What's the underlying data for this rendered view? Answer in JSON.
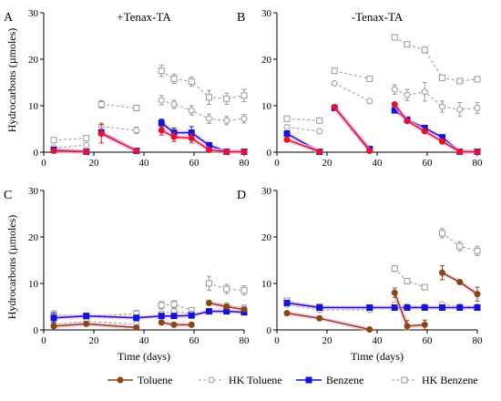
{
  "figure": {
    "ylabel": "Hydrocarbons (µmoles)",
    "xlabel": "Time (days)"
  },
  "legend": [
    {
      "key": "toluene",
      "label": "Toluene"
    },
    {
      "key": "hk_toluene",
      "label": "HK Toluene"
    },
    {
      "key": "benzene",
      "label": "Benzene"
    },
    {
      "key": "hk_benzene",
      "label": "HK Benzene"
    }
  ],
  "styles": {
    "toluene": {
      "color": "#8B4513",
      "dashed": false,
      "marker": "circle",
      "filled": true
    },
    "toluene_red": {
      "color": "#e8102a",
      "dashed": false,
      "marker": "circle",
      "filled": true
    },
    "hk_toluene": {
      "color": "#999999",
      "dashed": true,
      "marker": "circle",
      "filled": false
    },
    "benzene": {
      "color": "#1010e0",
      "dashed": false,
      "marker": "square",
      "filled": true
    },
    "hk_benzene": {
      "color": "#999999",
      "dashed": true,
      "marker": "square",
      "filled": false
    },
    "glow": "#f4b6d8"
  },
  "chart_data": [
    {
      "panel": "A",
      "title": "+Tenax-TA",
      "type": "line",
      "xlim": [
        0,
        80
      ],
      "ylim": [
        0,
        30
      ],
      "xticks": [
        0,
        20,
        40,
        60,
        80
      ],
      "yticks": [
        0,
        10,
        20,
        30
      ],
      "series": [
        {
          "key": "hk_benzene",
          "style": "hk_benzene",
          "segments": [
            {
              "x": [
                4,
                17
              ],
              "y": [
                2.6,
                3.0
              ],
              "err": [
                0,
                0
              ]
            },
            {
              "x": [
                23,
                37
              ],
              "y": [
                10.3,
                9.5
              ],
              "err": [
                0.8,
                0.6
              ]
            },
            {
              "x": [
                47,
                52,
                59,
                66,
                73,
                80
              ],
              "y": [
                17.5,
                15.8,
                15.2,
                11.8,
                11.5,
                12.2
              ],
              "err": [
                1.2,
                1.0,
                1.0,
                1.5,
                1.2,
                1.3
              ]
            }
          ]
        },
        {
          "key": "hk_toluene",
          "style": "hk_toluene",
          "segments": [
            {
              "x": [
                4,
                17
              ],
              "y": [
                1.0,
                1.5
              ],
              "err": [
                0,
                0
              ]
            },
            {
              "x": [
                23,
                37
              ],
              "y": [
                5.5,
                4.7
              ],
              "err": [
                0.8,
                0.7
              ]
            },
            {
              "x": [
                47,
                52,
                59,
                66,
                73,
                80
              ],
              "y": [
                11.2,
                10.3,
                9.0,
                7.2,
                6.8,
                7.2
              ],
              "err": [
                1.0,
                0.9,
                1.0,
                1.0,
                0.9,
                0.9
              ]
            }
          ]
        },
        {
          "key": "benzene",
          "style": "benzene",
          "segments": [
            {
              "x": [
                4,
                17
              ],
              "y": [
                0.5,
                0.1
              ],
              "err": [
                0,
                0
              ]
            },
            {
              "x": [
                23,
                37
              ],
              "y": [
                4.2,
                0.3
              ],
              "err": [
                0.6,
                0
              ]
            },
            {
              "x": [
                47,
                52,
                59,
                66,
                73,
                80
              ],
              "y": [
                6.3,
                4.2,
                4.2,
                1.5,
                0.1,
                0.1
              ],
              "err": [
                0.8,
                1.0,
                1.3,
                0.3,
                0,
                0
              ]
            }
          ]
        },
        {
          "key": "toluene",
          "style": "toluene_red",
          "segments": [
            {
              "x": [
                4,
                17
              ],
              "y": [
                0.3,
                0.1
              ],
              "err": [
                0,
                0
              ]
            },
            {
              "x": [
                23,
                37
              ],
              "y": [
                4.0,
                0.3
              ],
              "err": [
                2.0,
                0
              ]
            },
            {
              "x": [
                47,
                52,
                59,
                66,
                73,
                80
              ],
              "y": [
                4.7,
                3.3,
                3.0,
                0.5,
                0.1,
                0.1
              ],
              "err": [
                1.0,
                1.0,
                1.0,
                0,
                0,
                0
              ]
            }
          ]
        }
      ]
    },
    {
      "panel": "B",
      "title": "-Tenax-TA",
      "type": "line",
      "xlim": [
        0,
        80
      ],
      "ylim": [
        0,
        30
      ],
      "xticks": [
        0,
        20,
        40,
        60,
        80
      ],
      "yticks": [
        0,
        10,
        20,
        30
      ],
      "series": [
        {
          "key": "hk_benzene",
          "style": "hk_benzene",
          "segments": [
            {
              "x": [
                4,
                17
              ],
              "y": [
                7.2,
                6.8
              ],
              "err": [
                0,
                0
              ]
            },
            {
              "x": [
                23,
                37
              ],
              "y": [
                17.5,
                15.8
              ],
              "err": [
                0,
                0
              ]
            },
            {
              "x": [
                47,
                52,
                59,
                66,
                73,
                80
              ],
              "y": [
                24.7,
                23.2,
                22.0,
                16.0,
                15.3,
                15.7
              ],
              "err": [
                0.5,
                0.5,
                0.6,
                0.5,
                0.5,
                0.5
              ]
            }
          ]
        },
        {
          "key": "hk_toluene",
          "style": "hk_toluene",
          "segments": [
            {
              "x": [
                4,
                17
              ],
              "y": [
                5.4,
                4.5
              ],
              "err": [
                0,
                0
              ]
            },
            {
              "x": [
                23,
                37
              ],
              "y": [
                14.8,
                11.0
              ],
              "err": [
                0,
                0
              ]
            },
            {
              "x": [
                47,
                52,
                59,
                66,
                73,
                80
              ],
              "y": [
                13.5,
                12.3,
                13.0,
                9.8,
                9.2,
                9.5
              ],
              "err": [
                1.0,
                1.2,
                2.0,
                1.2,
                1.5,
                1.2
              ]
            }
          ]
        },
        {
          "key": "benzene",
          "style": "benzene",
          "segments": [
            {
              "x": [
                4,
                17
              ],
              "y": [
                4.0,
                0.1
              ],
              "err": [
                0,
                0
              ]
            },
            {
              "x": [
                23,
                37
              ],
              "y": [
                9.5,
                0.7
              ],
              "err": [
                0,
                0
              ]
            },
            {
              "x": [
                47,
                52,
                59,
                66,
                73,
                80
              ],
              "y": [
                9.0,
                7.0,
                5.2,
                3.2,
                0.1,
                0.1
              ],
              "err": [
                0,
                0,
                0,
                0,
                0,
                0
              ]
            }
          ]
        },
        {
          "key": "toluene",
          "style": "toluene_red",
          "segments": [
            {
              "x": [
                4,
                17
              ],
              "y": [
                2.7,
                0.1
              ],
              "err": [
                0,
                0
              ]
            },
            {
              "x": [
                23,
                37
              ],
              "y": [
                9.7,
                0.3
              ],
              "err": [
                0,
                0
              ]
            },
            {
              "x": [
                47,
                52,
                59,
                66,
                73,
                80
              ],
              "y": [
                10.3,
                6.7,
                4.5,
                2.3,
                0.1,
                0.1
              ],
              "err": [
                0,
                0,
                0,
                0,
                0,
                0
              ]
            }
          ]
        }
      ]
    },
    {
      "panel": "C",
      "title": "",
      "type": "line",
      "xlim": [
        0,
        80
      ],
      "ylim": [
        0,
        30
      ],
      "xticks": [
        0,
        20,
        40,
        60,
        80
      ],
      "yticks": [
        0,
        10,
        20,
        30
      ],
      "series": [
        {
          "key": "hk_benzene",
          "style": "hk_benzene",
          "segments": [
            {
              "x": [
                4,
                17,
                37
              ],
              "y": [
                3.3,
                3.0,
                3.5
              ],
              "err": [
                0.8,
                0,
                0.7
              ]
            },
            {
              "x": [
                47,
                52,
                59
              ],
              "y": [
                5.3,
                5.5,
                4.2
              ],
              "err": [
                0.8,
                0.8,
                0.5
              ]
            },
            {
              "x": [
                66,
                73,
                80
              ],
              "y": [
                10.0,
                8.8,
                8.5
              ],
              "err": [
                1.5,
                1.0,
                1.0
              ]
            }
          ]
        },
        {
          "key": "hk_toluene",
          "style": "hk_toluene",
          "segments": [
            {
              "x": [
                4,
                17,
                37
              ],
              "y": [
                1.3,
                1.8,
                1.3
              ],
              "err": [
                0,
                0,
                0
              ]
            },
            {
              "x": [
                47,
                52,
                59
              ],
              "y": [
                3.5,
                4.0,
                3.5
              ],
              "err": [
                0.5,
                0.5,
                0.5
              ]
            },
            {
              "x": [
                66,
                73,
                80
              ],
              "y": [
                5.8,
                5.3,
                4.8
              ],
              "err": [
                0.5,
                0.5,
                0.5
              ]
            }
          ]
        },
        {
          "key": "benzene",
          "style": "benzene",
          "segments": [
            {
              "x": [
                4,
                17,
                37,
                47,
                52,
                59,
                66,
                73,
                80
              ],
              "y": [
                2.6,
                3.0,
                2.6,
                3.0,
                3.0,
                3.1,
                4.0,
                4.0,
                3.8
              ],
              "err": [
                1.0,
                0,
                0,
                0,
                0,
                0,
                0,
                0,
                0
              ]
            }
          ]
        },
        {
          "key": "toluene",
          "style": "toluene",
          "segments": [
            {
              "x": [
                4,
                17,
                37
              ],
              "y": [
                0.8,
                1.3,
                0.5
              ],
              "err": [
                0,
                0,
                0
              ]
            },
            {
              "x": [
                47,
                52,
                59
              ],
              "y": [
                1.6,
                1.1,
                1.1
              ],
              "err": [
                0,
                0,
                0
              ]
            },
            {
              "x": [
                66,
                73,
                80
              ],
              "y": [
                5.8,
                5.0,
                4.4
              ],
              "err": [
                0,
                0,
                0
              ]
            }
          ]
        }
      ]
    },
    {
      "panel": "D",
      "title": "",
      "type": "line",
      "xlim": [
        0,
        80
      ],
      "ylim": [
        0,
        30
      ],
      "xticks": [
        0,
        20,
        40,
        60,
        80
      ],
      "yticks": [
        0,
        10,
        20,
        30
      ],
      "series": [
        {
          "key": "hk_benzene",
          "style": "hk_benzene",
          "segments": [
            {
              "x": [
                4,
                17,
                37
              ],
              "y": [
                6.3,
                5.0,
                4.8
              ],
              "err": [
                0.5,
                0,
                0
              ]
            },
            {
              "x": [
                47,
                52,
                59
              ],
              "y": [
                13.2,
                10.5,
                9.2
              ],
              "err": [
                0.6,
                0.5,
                0.5
              ]
            },
            {
              "x": [
                66,
                73,
                80
              ],
              "y": [
                20.8,
                18.0,
                17.0
              ],
              "err": [
                1.0,
                1.0,
                1.0
              ]
            }
          ]
        },
        {
          "key": "hk_toluene",
          "style": "hk_toluene",
          "segments": [
            {
              "x": [
                4,
                17,
                37
              ],
              "y": [
                5.4,
                4.3,
                4.3
              ],
              "err": [
                0,
                0,
                0
              ]
            },
            {
              "x": [
                47,
                52,
                59
              ],
              "y": [
                5.5,
                5.0,
                5.0
              ],
              "err": [
                0,
                0,
                0
              ]
            },
            {
              "x": [
                66,
                73,
                80
              ],
              "y": [
                5.5,
                5.0,
                5.0
              ],
              "err": [
                0,
                0,
                0
              ]
            }
          ]
        },
        {
          "key": "benzene",
          "style": "benzene",
          "segments": [
            {
              "x": [
                4,
                17,
                37,
                47,
                52,
                59,
                66,
                73,
                80
              ],
              "y": [
                5.8,
                4.8,
                4.8,
                4.8,
                4.8,
                4.8,
                4.8,
                4.8,
                4.8
              ],
              "err": [
                0.5,
                0,
                0,
                0,
                0,
                0,
                0,
                0,
                0
              ]
            }
          ]
        },
        {
          "key": "toluene",
          "style": "toluene",
          "segments": [
            {
              "x": [
                4,
                17,
                37
              ],
              "y": [
                3.6,
                2.5,
                0.1
              ],
              "err": [
                0,
                0,
                0
              ]
            },
            {
              "x": [
                47,
                52,
                59
              ],
              "y": [
                8.0,
                0.8,
                1.1
              ],
              "err": [
                1.0,
                1.2,
                1.0
              ]
            },
            {
              "x": [
                66,
                73,
                80
              ],
              "y": [
                12.3,
                10.3,
                7.7
              ],
              "err": [
                1.5,
                0,
                1.5
              ]
            }
          ]
        }
      ]
    }
  ]
}
